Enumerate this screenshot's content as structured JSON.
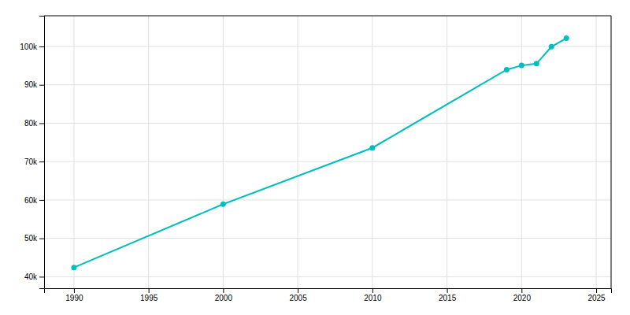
{
  "chart_data": {
    "type": "line",
    "x": [
      1990,
      2000,
      2010,
      2019,
      2020,
      2021,
      2022,
      2023
    ],
    "values": [
      42396,
      58897,
      73580,
      93949,
      95047,
      95523,
      99937,
      102149
    ],
    "color": "#00BEBE",
    "marker": "circle",
    "xlim": [
      1988,
      2026
    ],
    "ylim": [
      37000,
      108000
    ],
    "xticks": [
      1990,
      1995,
      2000,
      2005,
      2010,
      2015,
      2020,
      2025
    ],
    "yticks": [
      {
        "value": 40000,
        "label": "40k"
      },
      {
        "value": 50000,
        "label": "50k"
      },
      {
        "value": 60000,
        "label": "60k"
      },
      {
        "value": 70000,
        "label": "70k"
      },
      {
        "value": 80000,
        "label": "80k"
      },
      {
        "value": 90000,
        "label": "90k"
      },
      {
        "value": 100000,
        "label": "100k"
      }
    ],
    "grid": true
  }
}
